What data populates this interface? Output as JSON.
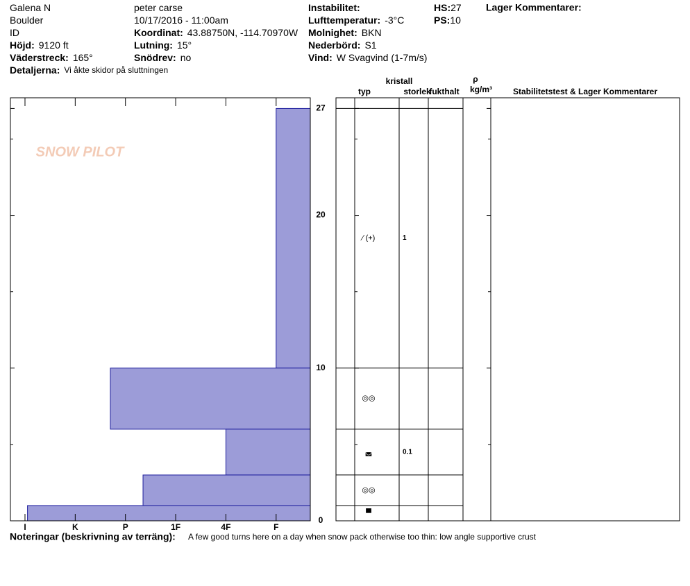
{
  "header": {
    "col1": [
      {
        "value": "Galena N"
      },
      {
        "value": "Boulder"
      },
      {
        "value": "ID"
      },
      {
        "label": "Höjd:",
        "value": "9120 ft"
      },
      {
        "label": "Väderstreck:",
        "value": "165°"
      },
      {
        "label": "Detaljerna:",
        "value": "Vi åkte skidor på sluttningen"
      }
    ],
    "col2": [
      {
        "value": "peter carse"
      },
      {
        "value": "10/17/2016 - 11:00am"
      },
      {
        "label": "Koordinat:",
        "value": "43.88750N, -114.70970W"
      },
      {
        "label": "Lutning:",
        "value": "15°"
      },
      {
        "label": "Snödrev:",
        "value": "no"
      }
    ],
    "col3": [
      {
        "label": "Instabilitet:",
        "value": ""
      },
      {
        "label": "Lufttemperatur:",
        "value": "-3°C"
      },
      {
        "label": "Molnighet:",
        "value": "BKN"
      },
      {
        "label": "Nederbörd:",
        "value": "S1"
      },
      {
        "label": "Vind:",
        "value": "W Svagvind (1-7m/s)"
      }
    ],
    "col4": [
      {
        "label": "HS:",
        "value": "27"
      },
      {
        "label": "PS:",
        "value": "10"
      }
    ],
    "comments_title": "Lager Kommentarer:"
  },
  "logo": "SNOW PILOT",
  "chart_data": {
    "type": "snowprofile",
    "xticks": [
      {
        "value": 6,
        "label": "I"
      },
      {
        "value": 5,
        "label": "K"
      },
      {
        "value": 4,
        "label": "P"
      },
      {
        "value": 3,
        "label": "1F"
      },
      {
        "value": 2,
        "label": "4F"
      },
      {
        "value": 1,
        "label": "F"
      }
    ],
    "xlim": [
      0.32,
      6.29
    ],
    "ylim": [
      0,
      27.7
    ],
    "yticks": [
      0,
      10,
      20,
      27
    ],
    "minor_yticks": [
      5,
      15,
      25
    ],
    "color": "#9c9cd8",
    "layers": [
      {
        "top": 27,
        "bottom": 10,
        "hardness": 1,
        "grain": "⁄ (+)",
        "size": "1"
      },
      {
        "top": 10,
        "bottom": 6,
        "hardness": 4.3,
        "grain": "◎◎",
        "size": ""
      },
      {
        "top": 6,
        "bottom": 3,
        "hardness": 2,
        "grain": "◛",
        "size": "0.1"
      },
      {
        "top": 3,
        "bottom": 1,
        "hardness": 3.65,
        "grain": "◎◎",
        "size": ""
      },
      {
        "top": 1,
        "bottom": 0,
        "hardness": 5.95,
        "grain": "▀",
        "size": ""
      }
    ],
    "columns": {
      "typ": "typ",
      "kristall": "kristall",
      "storlek": "storlek",
      "fukthalt": "fukthalt",
      "rho": "ρ",
      "density": "kg/m³",
      "stability": "Stabilitetstest & Lager Kommentarer"
    }
  },
  "notes": {
    "label": "Noteringar (beskrivning av terräng):",
    "text": "A few good turns here on a day when snow pack otherwise too thin: low angle supportive crust"
  }
}
